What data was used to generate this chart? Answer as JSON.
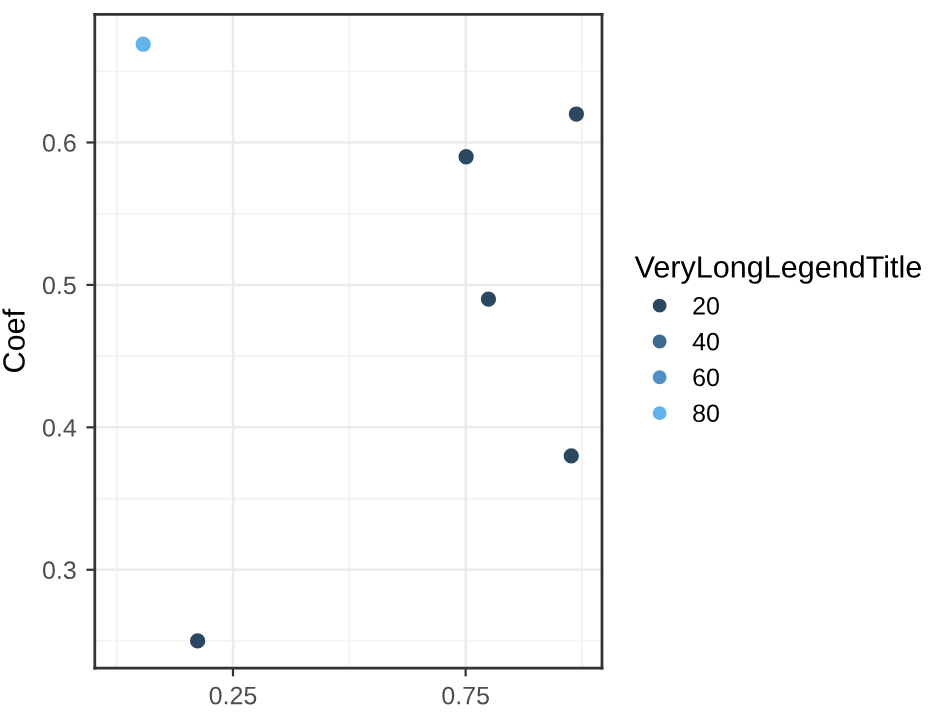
{
  "chart_data": {
    "type": "scatter",
    "ylabel": "Coef",
    "legend_title": "VeryLongLegendTitle",
    "series": [
      {
        "name": "20",
        "color": "#2b4863",
        "x": [
          0.174,
          0.751,
          0.799,
          0.988,
          0.977
        ],
        "values": [
          0.25,
          0.59,
          0.49,
          0.62,
          0.38
        ]
      },
      {
        "name": "40",
        "color": "#3d6a92"
      },
      {
        "name": "60",
        "color": "#4f8fc4"
      },
      {
        "name": "80",
        "color": "#62b2ee",
        "x": [
          0.057
        ],
        "values": [
          0.669
        ]
      }
    ],
    "xlim": [
      -0.047,
      1.043
    ],
    "xticks": [
      0.25,
      0.75
    ],
    "ylim": [
      0.231,
      0.69
    ],
    "yticks": [
      0.3,
      0.4,
      0.5,
      0.6
    ],
    "grid": true,
    "legend": "right",
    "marker": "circle"
  }
}
